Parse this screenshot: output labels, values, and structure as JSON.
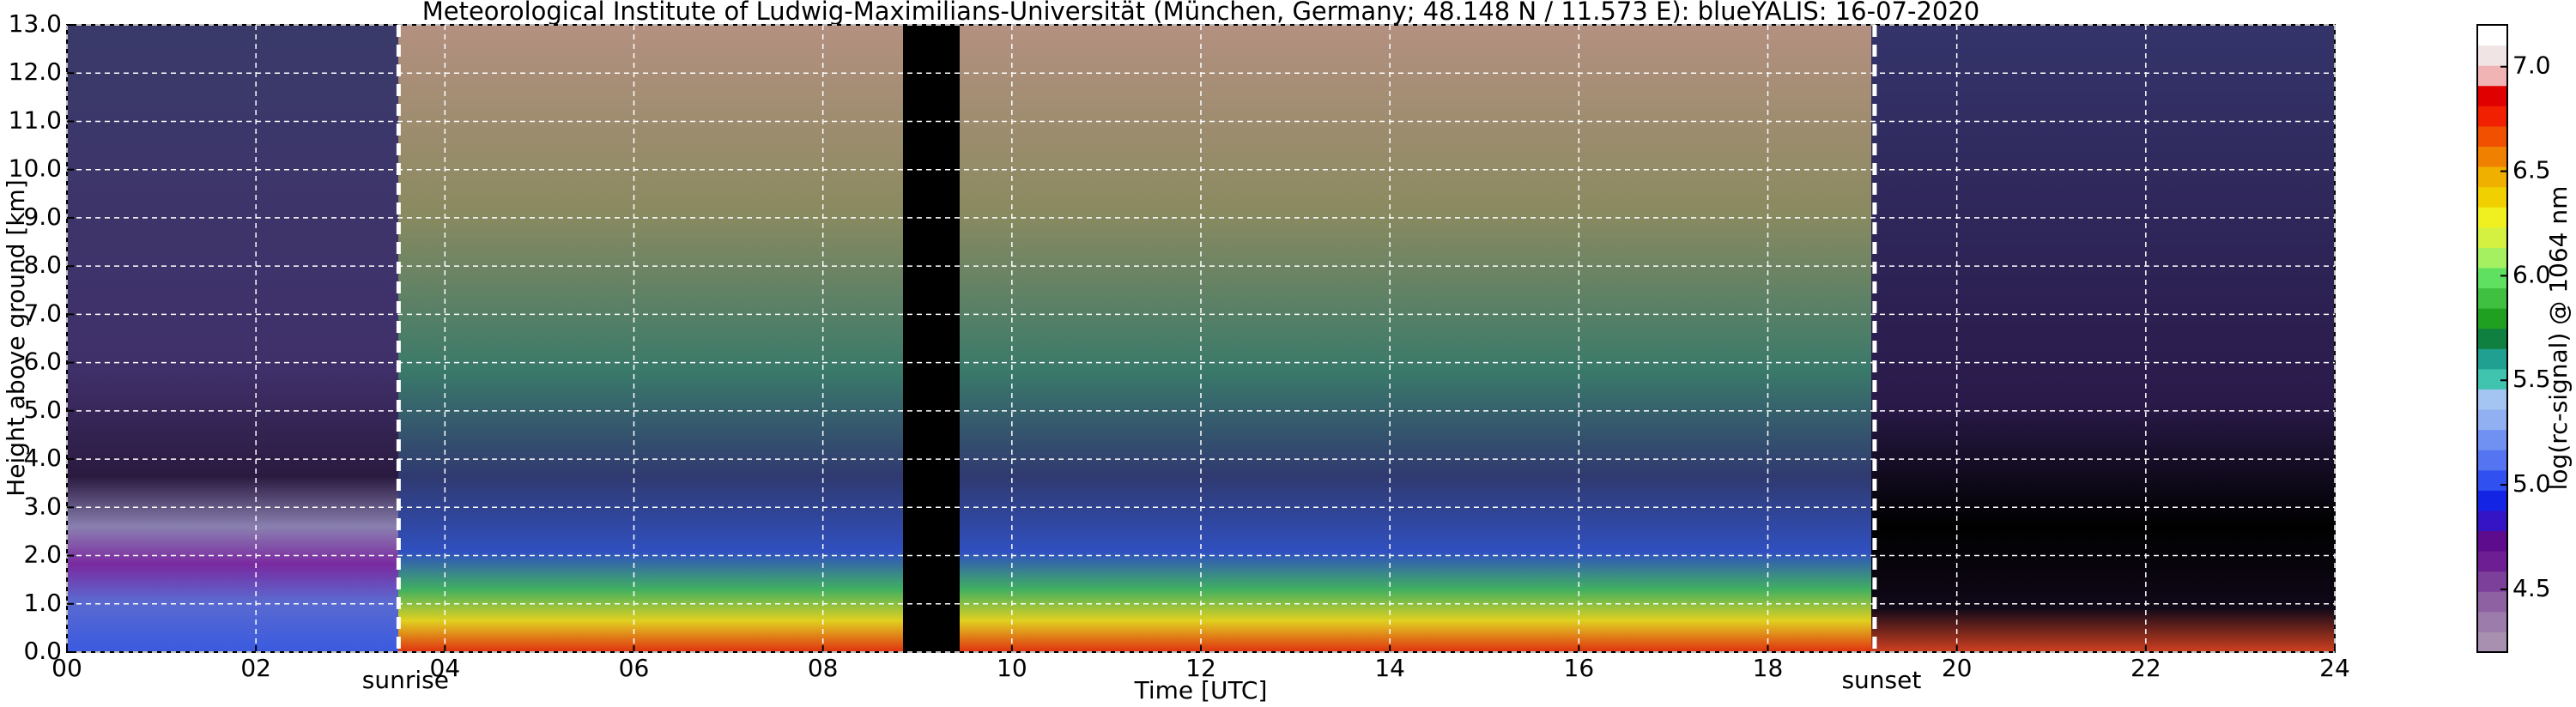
{
  "chart_data": {
    "type": "heatmap",
    "title": "Meteorological Institute of Ludwig-Maximilians-Universität (München, Germany; 48.148 N / 11.573 E):    blueYALIS: 16-07-2020",
    "xlabel": "Time [UTC]",
    "ylabel": "Height above ground [km]",
    "colorbar_label": "log(rc-signal) @ 1064 nm",
    "xlim": [
      0,
      24
    ],
    "xticks": [
      {
        "value": 0,
        "label": "00"
      },
      {
        "value": 2,
        "label": "02"
      },
      {
        "value": 4,
        "label": "04"
      },
      {
        "value": 6,
        "label": "06"
      },
      {
        "value": 8,
        "label": "08"
      },
      10,
      12,
      14,
      16,
      18,
      20,
      22,
      24
    ],
    "ylim": [
      0,
      13
    ],
    "yticks": [
      {
        "value": 0,
        "label": "0.0"
      },
      {
        "value": 1,
        "label": "1.0"
      },
      {
        "value": 2,
        "label": "2.0"
      },
      {
        "value": 3,
        "label": "3.0"
      },
      {
        "value": 4,
        "label": "4.0"
      },
      {
        "value": 5,
        "label": "5.0"
      },
      {
        "value": 6,
        "label": "6.0"
      },
      {
        "value": 7,
        "label": "7.0"
      },
      {
        "value": 8,
        "label": "8.0"
      },
      {
        "value": 9,
        "label": "9.0"
      },
      {
        "value": 10,
        "label": "10.0"
      },
      {
        "value": 11,
        "label": "11.0"
      },
      {
        "value": 12,
        "label": "12.0"
      },
      {
        "value": 13,
        "label": "13.0"
      }
    ],
    "clim": [
      4.2,
      7.2
    ],
    "cticks": [
      4.5,
      {
        "value": 5,
        "label": "5.0"
      },
      5.5,
      {
        "value": 6,
        "label": "6.0"
      },
      6.5,
      {
        "value": 7,
        "label": "7.0"
      }
    ],
    "colormap": [
      "#a890b0",
      "#9c7cab",
      "#8e62a2",
      "#7c409a",
      "#6c1e92",
      "#5c0c8c",
      "#3414c4",
      "#1424e4",
      "#3050f0",
      "#5474f2",
      "#7090f2",
      "#90b0f2",
      "#a4c4f2",
      "#40c4b0",
      "#20a090",
      "#108040",
      "#20a020",
      "#40c040",
      "#60e060",
      "#a4f060",
      "#d4f040",
      "#f0f020",
      "#f0d000",
      "#f0b000",
      "#f08000",
      "#f05000",
      "#f02000",
      "#e00000",
      "#f0b4b4",
      "#f0e4e4",
      "#ffffff"
    ],
    "grid": true,
    "annotations": [
      {
        "text": "sunrise",
        "x": 3.51
      },
      {
        "text": "sunset",
        "x": 19.13
      }
    ]
  }
}
